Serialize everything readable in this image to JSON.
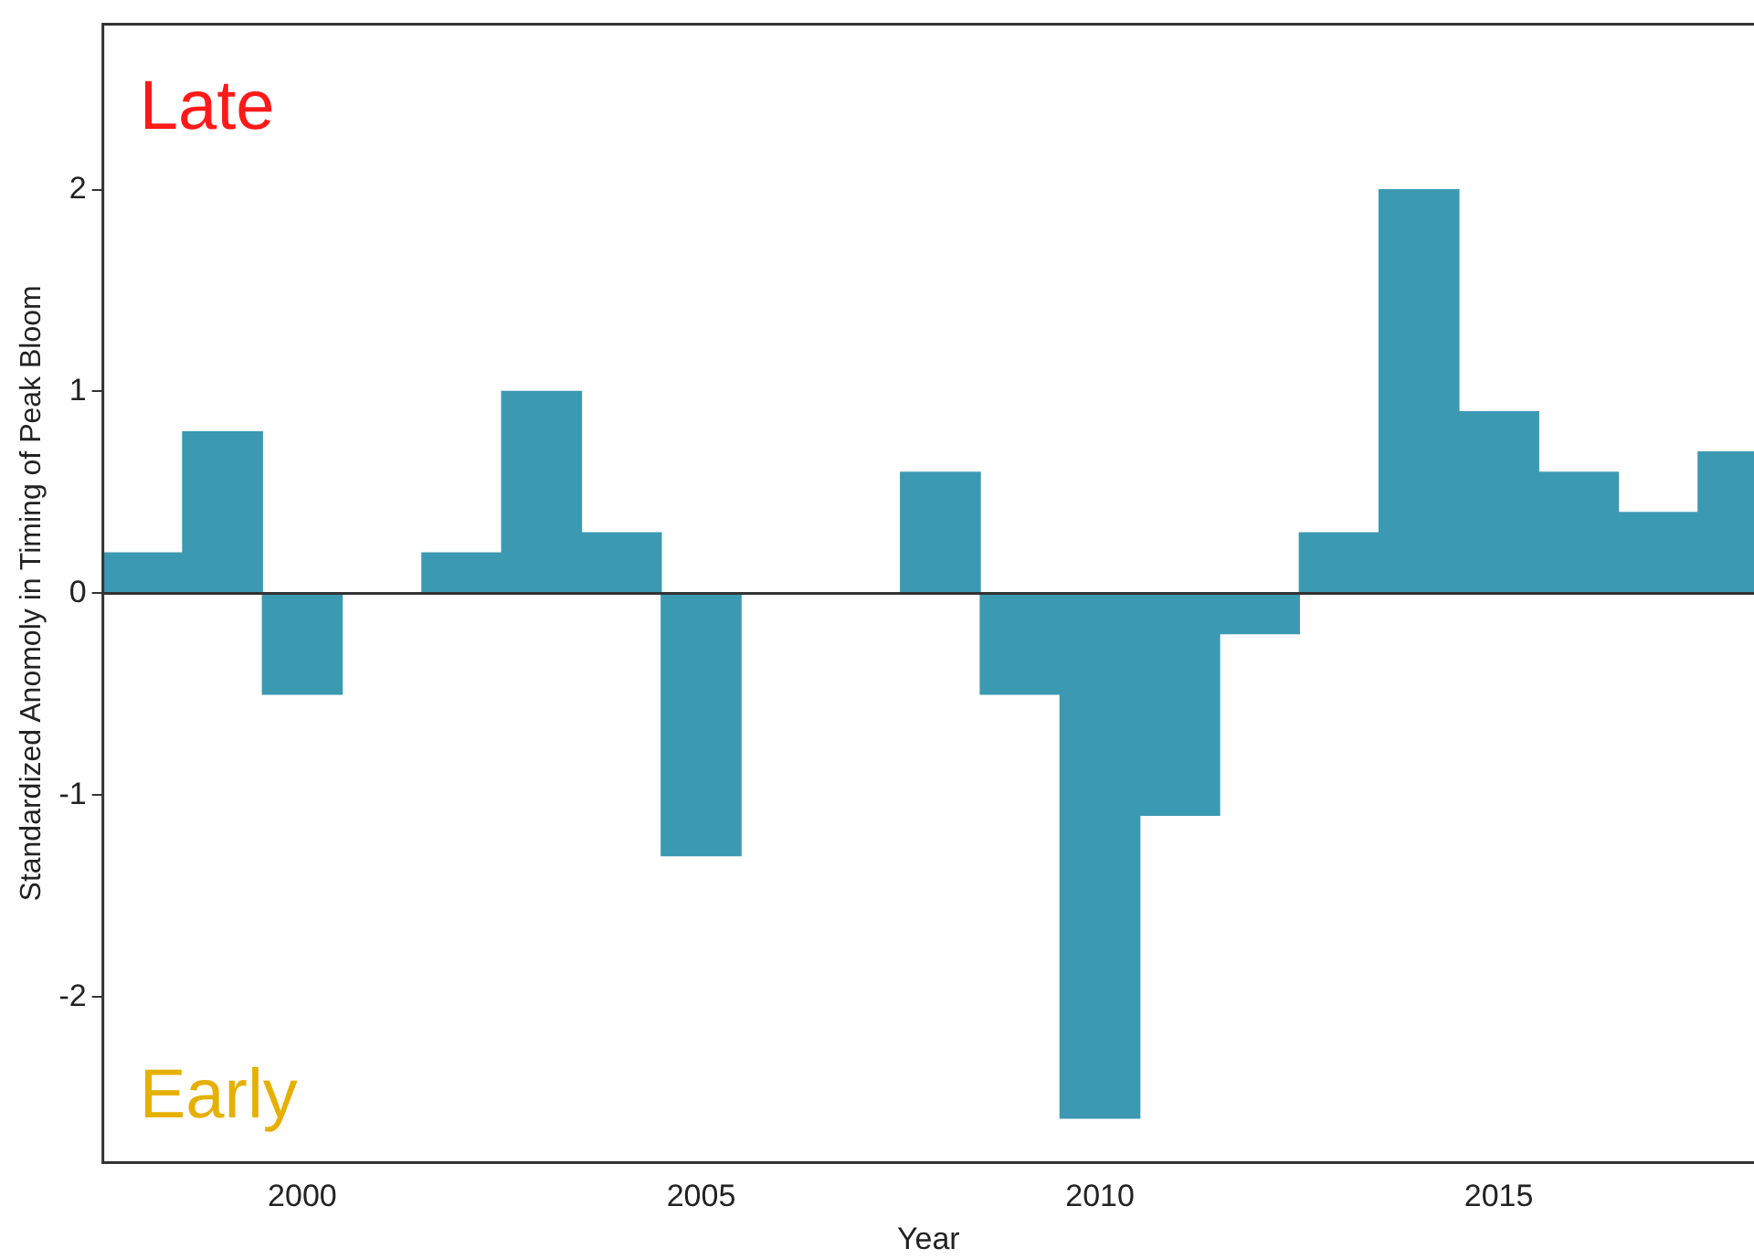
{
  "chart_data": {
    "type": "bar",
    "xlabel": "Year",
    "ylabel": "Standardized Anomoly in Timing of Peak Bloom",
    "x": [
      1998,
      1999,
      2000,
      2001,
      2002,
      2003,
      2004,
      2005,
      2006,
      2007,
      2008,
      2009,
      2010,
      2011,
      2012,
      2013,
      2014,
      2015,
      2016,
      2017,
      2018
    ],
    "values": [
      0.2,
      0.8,
      -0.5,
      null,
      0.2,
      1.0,
      0.3,
      -1.3,
      null,
      null,
      0.6,
      -0.5,
      -2.6,
      -1.1,
      -0.2,
      0.3,
      2.0,
      0.9,
      0.6,
      0.4,
      0.7
    ],
    "color": "#3c99b2",
    "xlim": [
      1997.5,
      2018.2
    ],
    "xticks": [
      2000,
      2005,
      2010,
      2015
    ],
    "ylim": [
      -2.82,
      2.82
    ],
    "yticks": [
      -2,
      -1,
      0,
      1,
      2
    ],
    "ref_lines": [
      {
        "axis": "y",
        "value": 0,
        "color": "#333333"
      }
    ],
    "annotations": [
      "Late",
      "Early"
    ],
    "grid": false,
    "legend": false
  }
}
